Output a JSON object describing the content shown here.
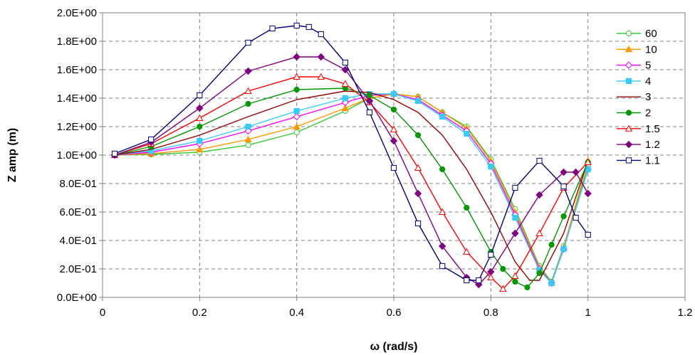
{
  "chart_data": {
    "type": "line",
    "xlabel": "ω (rad/s)",
    "ylabel": "Z amp (m)",
    "xlim": [
      0,
      1.2
    ],
    "ylim": [
      0,
      2.0
    ],
    "x_ticks": [
      "0",
      "0.2",
      "0.4",
      "0.6",
      "0.8",
      "1",
      "1.2"
    ],
    "x_tick_values": [
      0,
      0.2,
      0.4,
      0.6,
      0.8,
      1.0,
      1.2
    ],
    "y_ticks": [
      "0.0E+00",
      "2.0E-01",
      "4.0E-01",
      "6.0E-01",
      "8.0E-01",
      "1.0E+00",
      "1.2E+00",
      "1.4E+00",
      "1.6E+00",
      "1.8E+00",
      "2.0E+00"
    ],
    "y_tick_values": [
      0,
      0.2,
      0.4,
      0.6,
      0.8,
      1.0,
      1.2,
      1.4,
      1.6,
      1.8,
      2.0
    ],
    "grid": "dashed",
    "legend_position": "right",
    "series": [
      {
        "name": "60",
        "color": "#33cc33",
        "marker": "circle-open",
        "x": [
          0.025,
          0.1,
          0.2,
          0.3,
          0.4,
          0.5,
          0.55,
          0.6,
          0.65,
          0.7,
          0.75,
          0.8,
          0.85,
          0.9,
          0.925,
          0.95,
          1.0
        ],
        "y": [
          1.0,
          1.005,
          1.02,
          1.07,
          1.16,
          1.31,
          1.4,
          1.43,
          1.41,
          1.3,
          1.2,
          0.97,
          0.62,
          0.22,
          0.11,
          0.36,
          0.92
        ]
      },
      {
        "name": "10",
        "color": "#ff9900",
        "marker": "triangle-filled",
        "x": [
          0.025,
          0.1,
          0.2,
          0.3,
          0.4,
          0.5,
          0.55,
          0.6,
          0.65,
          0.7,
          0.75,
          0.8,
          0.85,
          0.9,
          0.925,
          0.95,
          1.0
        ],
        "y": [
          1.0,
          1.01,
          1.04,
          1.11,
          1.2,
          1.33,
          1.4,
          1.43,
          1.41,
          1.3,
          1.19,
          0.96,
          0.6,
          0.21,
          0.1,
          0.35,
          0.96
        ]
      },
      {
        "name": "5",
        "color": "#ff00ff",
        "marker": "diamond-open",
        "x": [
          0.025,
          0.1,
          0.2,
          0.3,
          0.4,
          0.5,
          0.55,
          0.6,
          0.65,
          0.7,
          0.75,
          0.8,
          0.85,
          0.9,
          0.925,
          0.95,
          1.0
        ],
        "y": [
          1.0,
          1.02,
          1.08,
          1.17,
          1.27,
          1.37,
          1.42,
          1.43,
          1.39,
          1.28,
          1.17,
          0.94,
          0.58,
          0.2,
          0.1,
          0.34,
          0.9
        ]
      },
      {
        "name": "4",
        "color": "#33ccff",
        "marker": "square-filled",
        "x": [
          0.025,
          0.1,
          0.2,
          0.3,
          0.4,
          0.5,
          0.55,
          0.6,
          0.65,
          0.7,
          0.75,
          0.8,
          0.85,
          0.9,
          0.925,
          0.95,
          1.0
        ],
        "y": [
          1.0,
          1.03,
          1.1,
          1.2,
          1.31,
          1.4,
          1.43,
          1.43,
          1.38,
          1.27,
          1.15,
          0.92,
          0.56,
          0.19,
          0.1,
          0.34,
          0.9
        ]
      },
      {
        "name": "3",
        "color": "#990000",
        "marker": "none",
        "x": [
          0.025,
          0.1,
          0.2,
          0.3,
          0.4,
          0.5,
          0.55,
          0.6,
          0.65,
          0.7,
          0.75,
          0.8,
          0.85,
          0.88,
          0.9,
          0.95,
          1.0
        ],
        "y": [
          1.0,
          1.04,
          1.14,
          1.27,
          1.39,
          1.45,
          1.44,
          1.39,
          1.3,
          1.14,
          0.9,
          0.6,
          0.25,
          0.12,
          0.12,
          0.45,
          0.96
        ]
      },
      {
        "name": "2",
        "color": "#009900",
        "marker": "circle-filled",
        "x": [
          0.025,
          0.1,
          0.2,
          0.3,
          0.4,
          0.5,
          0.55,
          0.6,
          0.65,
          0.7,
          0.75,
          0.8,
          0.825,
          0.85,
          0.875,
          0.9,
          0.925,
          0.95,
          1.0
        ],
        "y": [
          1.0,
          1.06,
          1.2,
          1.36,
          1.46,
          1.47,
          1.42,
          1.32,
          1.14,
          0.9,
          0.63,
          0.32,
          0.2,
          0.11,
          0.07,
          0.17,
          0.37,
          0.57,
          0.95
        ]
      },
      {
        "name": "1.5",
        "color": "#ff0000",
        "marker": "triangle-open",
        "x": [
          0.025,
          0.1,
          0.2,
          0.3,
          0.4,
          0.45,
          0.5,
          0.55,
          0.6,
          0.65,
          0.7,
          0.75,
          0.8,
          0.825,
          0.85,
          0.9,
          0.95,
          1.0
        ],
        "y": [
          1.0,
          1.08,
          1.26,
          1.45,
          1.55,
          1.55,
          1.5,
          1.37,
          1.18,
          0.91,
          0.6,
          0.32,
          0.14,
          0.06,
          0.15,
          0.45,
          0.77,
          0.95
        ]
      },
      {
        "name": "1.2",
        "color": "#800080",
        "marker": "diamond-filled",
        "x": [
          0.025,
          0.1,
          0.2,
          0.3,
          0.4,
          0.45,
          0.5,
          0.55,
          0.6,
          0.65,
          0.7,
          0.75,
          0.775,
          0.8,
          0.85,
          0.9,
          0.95,
          0.975,
          1.0
        ],
        "y": [
          1.0,
          1.09,
          1.33,
          1.59,
          1.69,
          1.69,
          1.6,
          1.38,
          1.1,
          0.73,
          0.36,
          0.14,
          0.09,
          0.18,
          0.45,
          0.72,
          0.88,
          0.88,
          0.73
        ]
      },
      {
        "name": "1.1",
        "color": "#000080",
        "marker": "square-open",
        "x": [
          0.025,
          0.1,
          0.2,
          0.3,
          0.35,
          0.4,
          0.425,
          0.45,
          0.5,
          0.55,
          0.6,
          0.65,
          0.7,
          0.75,
          0.775,
          0.8,
          0.85,
          0.9,
          0.95,
          0.975,
          1.0
        ],
        "y": [
          1.01,
          1.11,
          1.42,
          1.79,
          1.89,
          1.91,
          1.9,
          1.85,
          1.65,
          1.3,
          0.91,
          0.52,
          0.22,
          0.12,
          0.12,
          0.3,
          0.77,
          0.96,
          0.78,
          0.56,
          0.44
        ]
      }
    ]
  }
}
